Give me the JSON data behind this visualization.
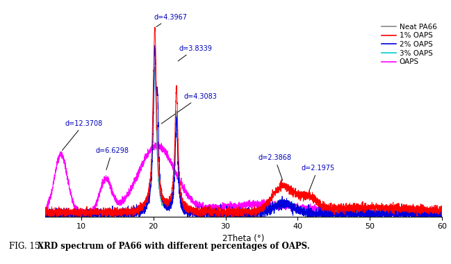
{
  "xlabel": "2Theta (°)",
  "xlim": [
    5,
    60
  ],
  "xticks": [
    10,
    20,
    30,
    40,
    50,
    60
  ],
  "series_labels": [
    "Neat PA66",
    "1% OAPS",
    "2% OAPS",
    "3% OAPS",
    "OAPS"
  ],
  "series_colors": [
    "#888888",
    "#ff0000",
    "#0000dd",
    "#00cccc",
    "#ff00ff"
  ],
  "annot_color": "#0000bb",
  "caption_normal": "FIG. 15. ",
  "caption_bold": "XRD spectrum of PA66 with different percentages of OAPS.",
  "background_color": "#ffffff"
}
